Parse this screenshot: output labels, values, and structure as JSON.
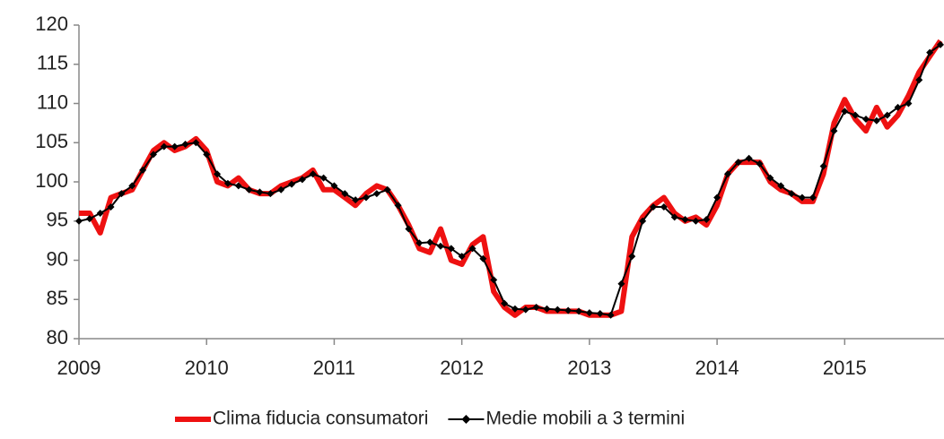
{
  "chart_data": {
    "type": "line",
    "categories": [
      "2009",
      null,
      null,
      null,
      null,
      null,
      null,
      null,
      null,
      null,
      null,
      null,
      "2010",
      null,
      null,
      null,
      null,
      null,
      null,
      null,
      null,
      null,
      null,
      null,
      "2011",
      null,
      null,
      null,
      null,
      null,
      null,
      null,
      null,
      null,
      null,
      null,
      "2012",
      null,
      null,
      null,
      null,
      null,
      null,
      null,
      null,
      null,
      null,
      null,
      "2013",
      null,
      null,
      null,
      null,
      null,
      null,
      null,
      null,
      null,
      null,
      null,
      "2014",
      null,
      null,
      null,
      null,
      null,
      null,
      null,
      null,
      null,
      null,
      null,
      "2015",
      null,
      null,
      null,
      null,
      null,
      null,
      null,
      null,
      null
    ],
    "series": [
      {
        "name": "Clima fiducia consumatori",
        "color": "#ee1111",
        "values": [
          96,
          96,
          93.5,
          98,
          98.5,
          99,
          101.5,
          104,
          105,
          104,
          104.5,
          105.5,
          104,
          100,
          99.5,
          100.5,
          99,
          98.5,
          98.5,
          99.5,
          100,
          100.5,
          101.5,
          99,
          99,
          98,
          97,
          98.5,
          99.5,
          99,
          97,
          94.5,
          91.5,
          91,
          94,
          90,
          89.5,
          92,
          93,
          86,
          84,
          83,
          84,
          84,
          83.5,
          83.5,
          83.5,
          83.5,
          83,
          83,
          83,
          83.5,
          93,
          95.5,
          97,
          98,
          96,
          95,
          95.5,
          94.5,
          97,
          101,
          102.5,
          102.5,
          102.5,
          100,
          99,
          98.5,
          97.5,
          97.5,
          101,
          107.5,
          110.5,
          108,
          106.5,
          109.5,
          107,
          108.5,
          111,
          114,
          116,
          118
        ]
      },
      {
        "name": "Medie mobili a 3 termini",
        "color": "#000000",
        "values": [
          95,
          95.3,
          96,
          96.8,
          98.5,
          99.5,
          101.5,
          103.5,
          104.5,
          104.5,
          104.8,
          105,
          103.5,
          101,
          99.8,
          99.5,
          99,
          98.7,
          98.5,
          99,
          99.7,
          100.3,
          101,
          100.5,
          99.5,
          98.5,
          97.7,
          98,
          98.5,
          99,
          97,
          94,
          92.2,
          92.3,
          91.8,
          91.5,
          90.5,
          91.5,
          90.2,
          87.5,
          84.5,
          83.8,
          83.7,
          84,
          83.8,
          83.7,
          83.6,
          83.5,
          83.3,
          83.2,
          83,
          87,
          90.5,
          95,
          96.8,
          96.8,
          95.5,
          95.2,
          95,
          95.2,
          98,
          101,
          102.5,
          103,
          102.3,
          100.5,
          99.5,
          98.5,
          98,
          98,
          102,
          106.5,
          109,
          108.5,
          108,
          107.8,
          108.5,
          109.5,
          110,
          113,
          116.5,
          117.5
        ]
      }
    ],
    "ylim": [
      80,
      120
    ],
    "yticks": [
      80,
      85,
      90,
      95,
      100,
      105,
      110,
      115,
      120
    ],
    "legend": "bottom"
  }
}
